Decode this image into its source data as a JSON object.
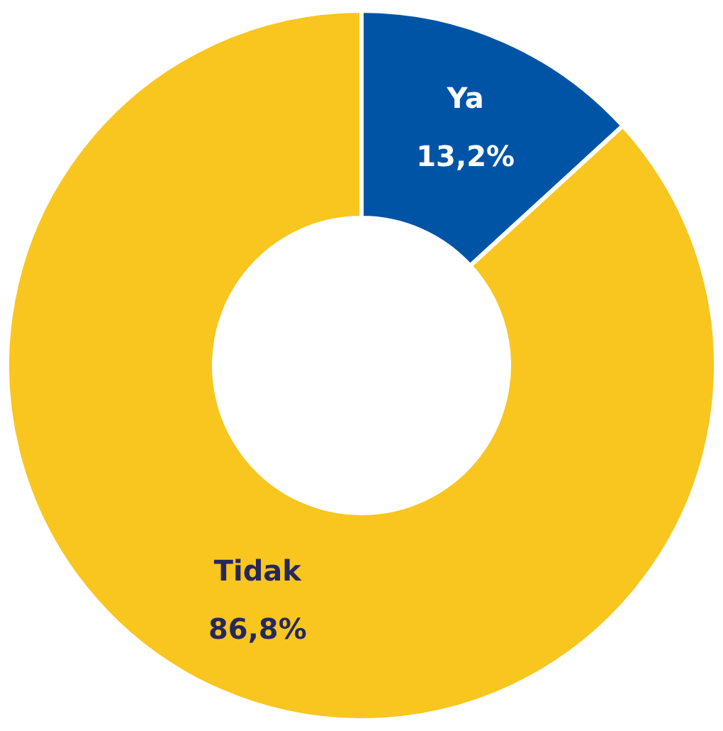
{
  "chart_data": {
    "type": "donut",
    "categories": [
      "Ya",
      "Tidak"
    ],
    "values": [
      13.2,
      86.8
    ],
    "colors": [
      "#0054a6",
      "#f9c61f"
    ],
    "value_labels": [
      "13,2%",
      "86,8%"
    ]
  }
}
